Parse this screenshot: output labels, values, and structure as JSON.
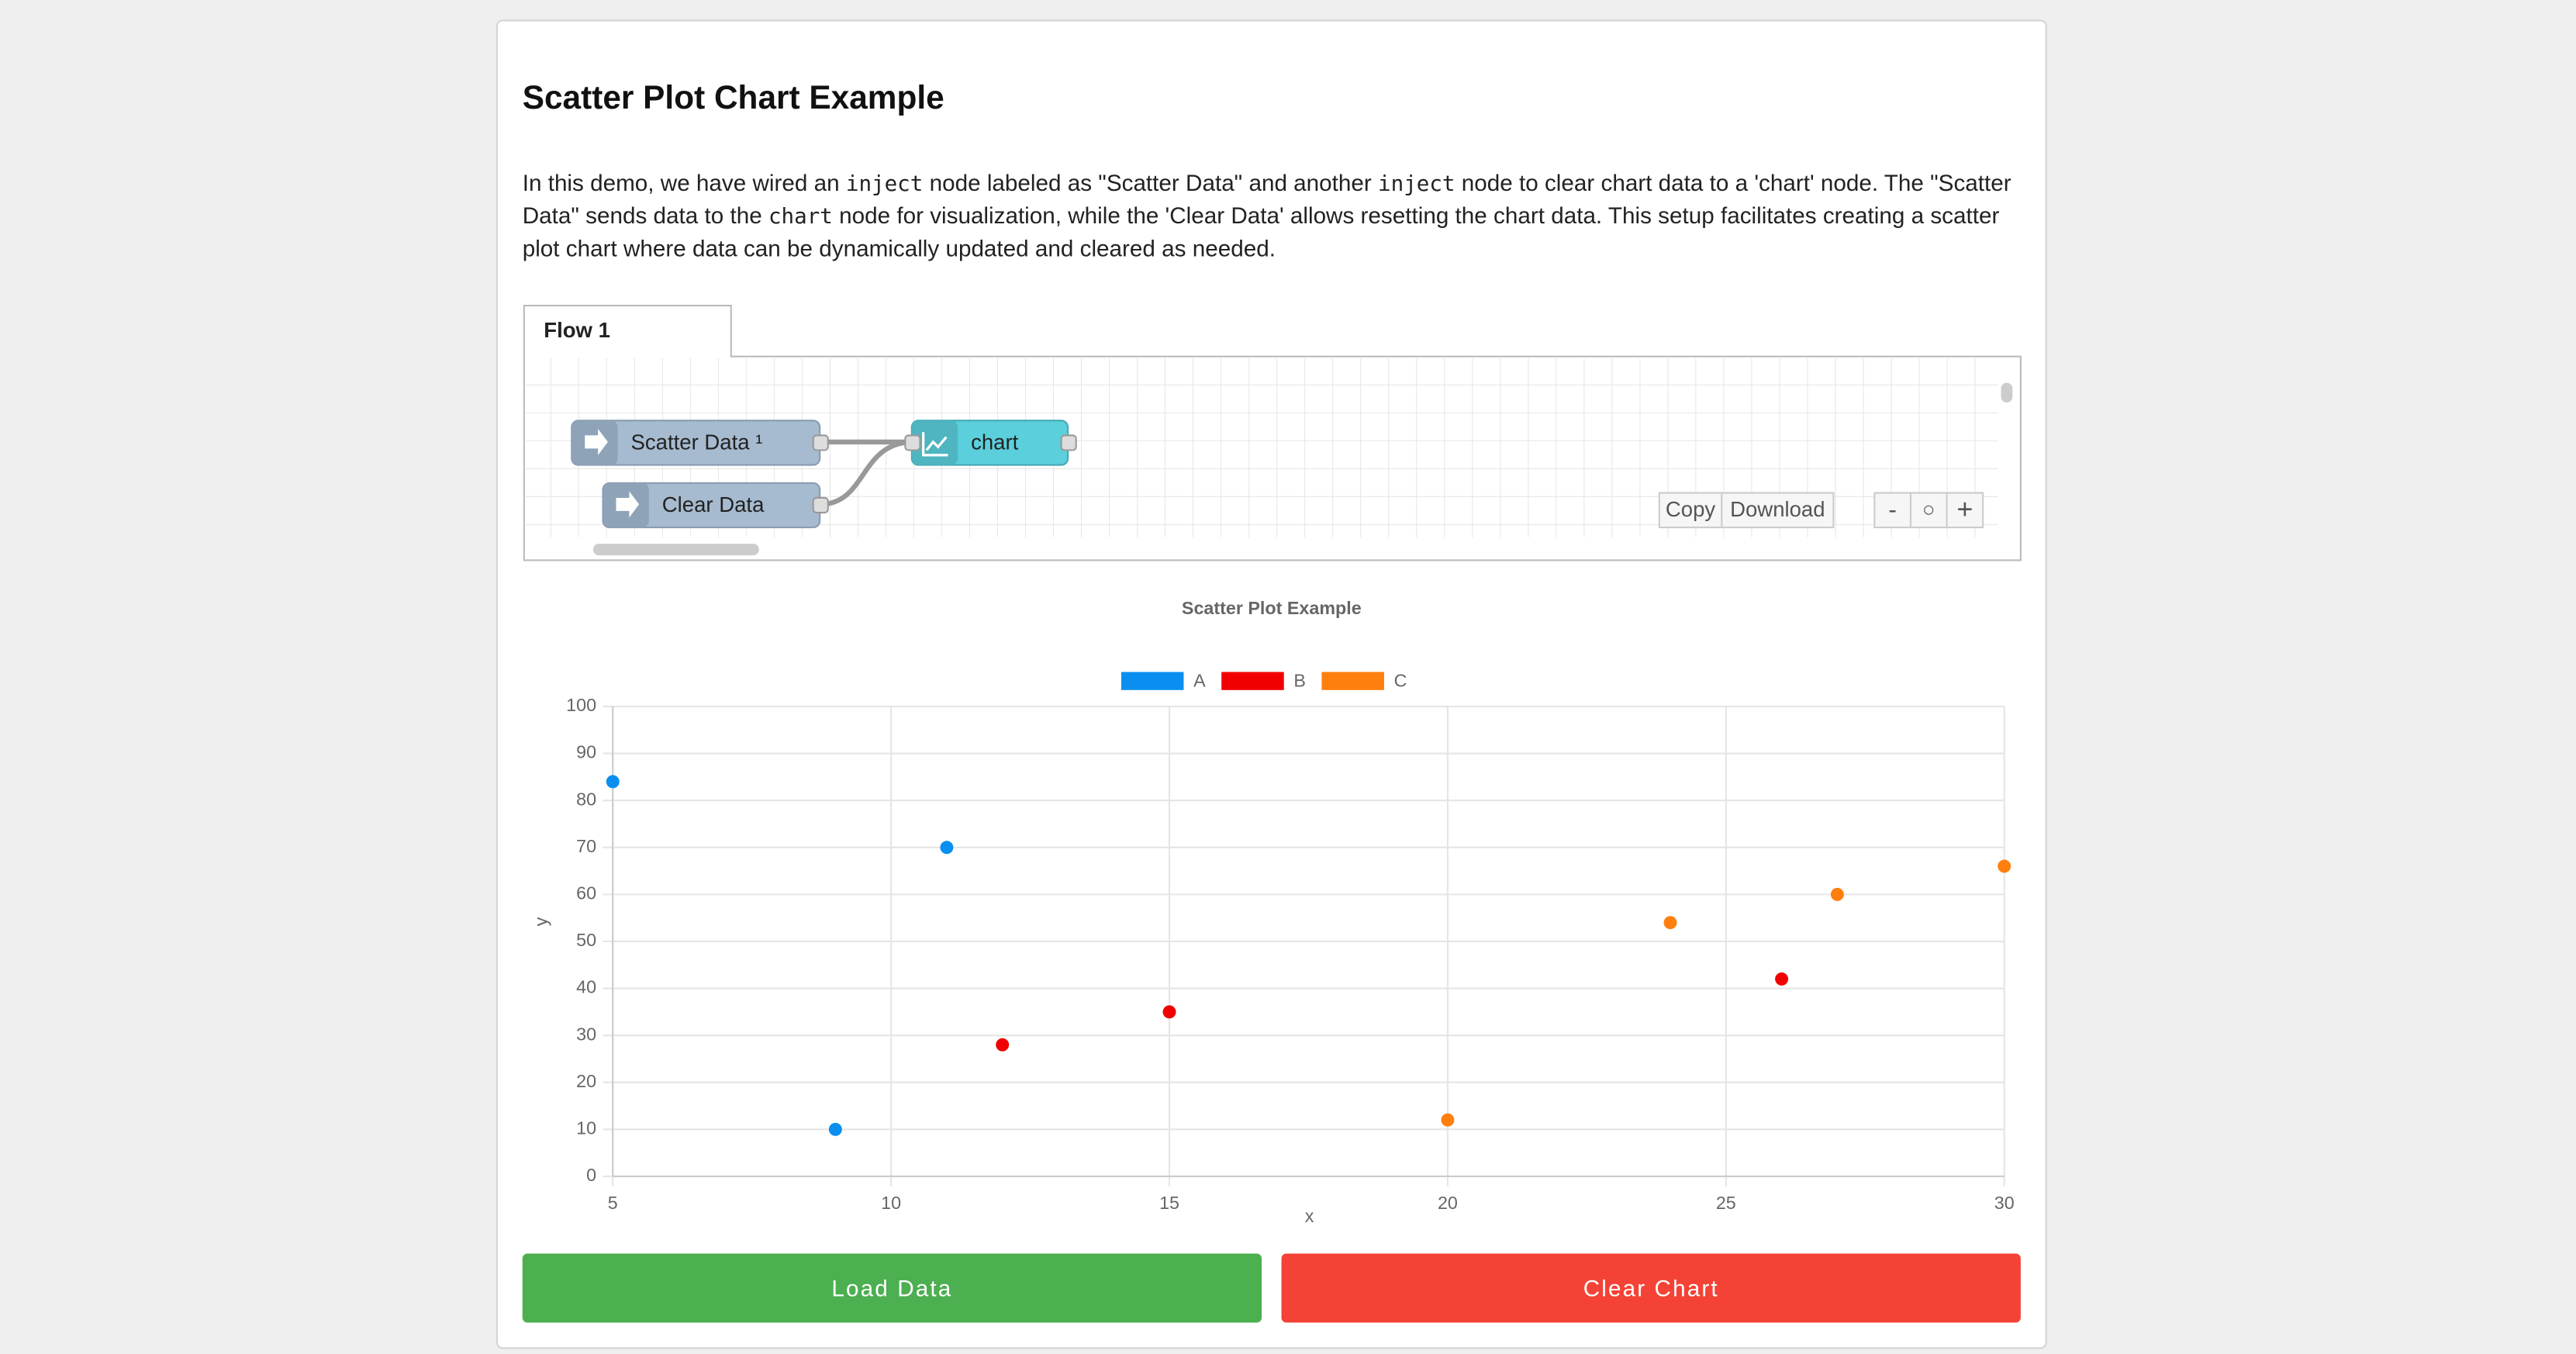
{
  "header": {
    "title": "Scatter Plot Chart Example"
  },
  "description": [
    {
      "text": "In this demo, we have wired an "
    },
    {
      "code": "inject"
    },
    {
      "text": " node labeled as \"Scatter Data\" and another "
    },
    {
      "code": "inject"
    },
    {
      "text": " node to clear chart data to a 'chart' node. The \"Scatter Data\" sends data to the "
    },
    {
      "code": "chart"
    },
    {
      "text": " node for visualization, while the 'Clear Data' allows resetting the chart data. This setup facilitates creating a scatter plot chart where data can be dynamically updated and cleared as needed."
    }
  ],
  "flow": {
    "tab": "Flow 1",
    "nodes": [
      {
        "label": "Scatter Data ¹"
      },
      {
        "label": "Clear Data"
      },
      {
        "label": "chart"
      }
    ],
    "toolbar": [
      "Copy",
      "Download"
    ],
    "zoom": [
      "-",
      "○",
      "+"
    ]
  },
  "chart_data": {
    "type": "scatter",
    "title": "Scatter Plot Example",
    "x_label": "x",
    "y_label": "y",
    "xlim": [
      5,
      30
    ],
    "xticks": [
      5,
      10,
      15,
      20,
      25,
      30
    ],
    "ylim": [
      0,
      100
    ],
    "yticks": [
      0,
      10,
      20,
      30,
      40,
      50,
      60,
      70,
      80,
      90,
      100
    ],
    "grid": true,
    "series": [
      {
        "name": "A",
        "color": "#0a8ff0",
        "x": [
          5,
          11,
          9
        ],
        "values": [
          84,
          70,
          10
        ]
      },
      {
        "name": "B",
        "color": "#f00000",
        "x": [
          12,
          15,
          26
        ],
        "values": [
          28,
          35,
          42
        ]
      },
      {
        "name": "C",
        "color": "#ff7f0e",
        "x": [
          20,
          24,
          27,
          30
        ],
        "values": [
          12,
          54,
          60,
          66
        ]
      }
    ]
  },
  "buttons": [
    {
      "label": "Load Data",
      "color": "#4caf50"
    },
    {
      "label": "Clear Chart",
      "color": "#f44336"
    }
  ]
}
